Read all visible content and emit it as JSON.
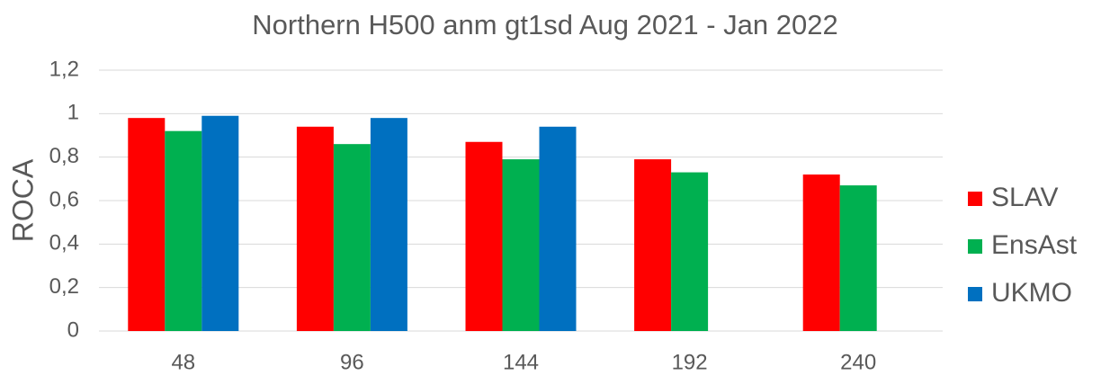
{
  "chart_data": {
    "type": "bar",
    "title": "Northern H500 anm gt1sd Aug 2021 - Jan 2022",
    "y_label": "ROCA",
    "categories": [
      "48",
      "96",
      "144",
      "192",
      "240"
    ],
    "series": [
      {
        "name": "SLAV",
        "color": "#ff0000",
        "values": [
          0.98,
          0.94,
          0.87,
          0.79,
          0.72
        ]
      },
      {
        "name": "EnsAst",
        "color": "#00b050",
        "values": [
          0.92,
          0.86,
          0.79,
          0.73,
          0.67
        ]
      },
      {
        "name": "UKMO",
        "color": "#0070c0",
        "values": [
          0.99,
          0.98,
          0.94,
          null,
          null
        ]
      }
    ],
    "ylim": [
      0,
      1.2
    ],
    "yticks": [
      0,
      {
        "value": 0.2,
        "label": "0,2"
      },
      {
        "value": 0.4,
        "label": "0,4"
      },
      {
        "value": 0.6,
        "label": "0,6"
      },
      {
        "value": 0.8,
        "label": "0,8"
      },
      1,
      {
        "value": 1.2,
        "label": "1,2"
      }
    ],
    "grid": true,
    "legend": "right"
  }
}
